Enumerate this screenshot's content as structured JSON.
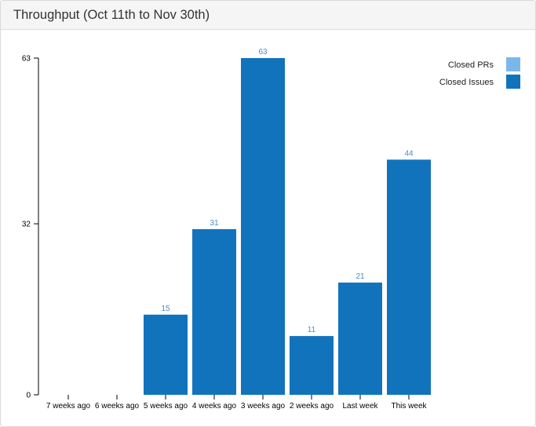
{
  "panel": {
    "title": "Throughput (Oct 11th to Nov 30th)"
  },
  "colors": {
    "closed_prs": "#7ab8ec",
    "closed_issues": "#1273bd",
    "value_label": "#4a8cc8",
    "axis": "#000000"
  },
  "chart_data": {
    "type": "bar",
    "stacked": true,
    "title": "Throughput (Oct 11th to Nov 30th)",
    "categories": [
      "7 weeks ago",
      "6 weeks ago",
      "5 weeks ago",
      "4 weeks ago",
      "3 weeks ago",
      "2 weeks ago",
      "Last week",
      "This week"
    ],
    "series": [
      {
        "name": "Closed PRs",
        "values": [
          0,
          0,
          0,
          0,
          0,
          0,
          0,
          0
        ]
      },
      {
        "name": "Closed Issues",
        "values": [
          0,
          0,
          15,
          31,
          63,
          11,
          21,
          44
        ]
      }
    ],
    "totals": [
      0,
      0,
      15,
      31,
      63,
      11,
      21,
      44
    ],
    "y_ticks": [
      0,
      32,
      63
    ],
    "ylim": [
      0,
      63
    ],
    "legend_position": "top-right",
    "grid": false
  }
}
